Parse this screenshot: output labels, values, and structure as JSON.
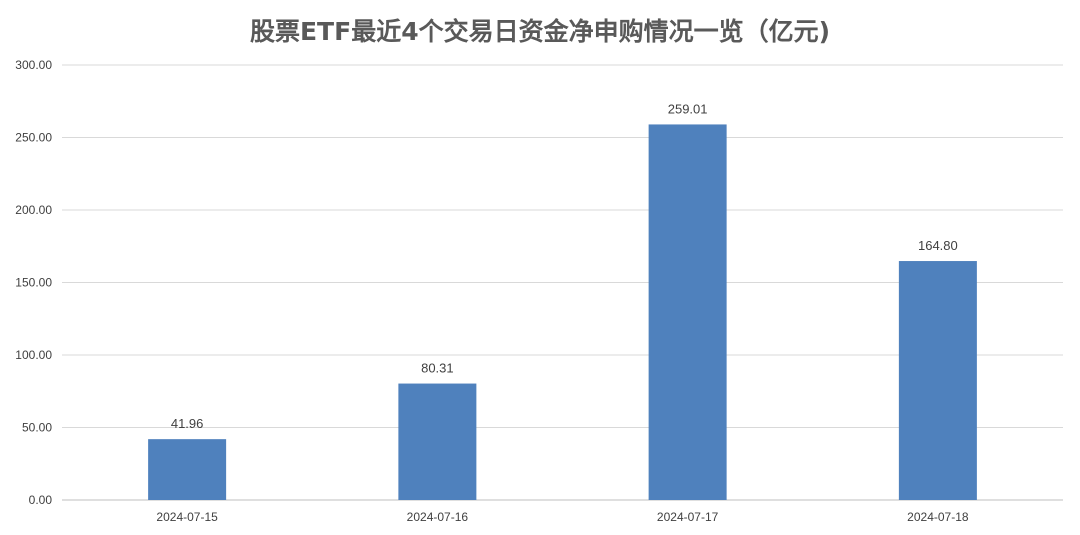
{
  "chart_data": {
    "type": "bar",
    "title": "股票ETF最近4个交易日资金净申购情况一览（亿元)",
    "xlabel": "",
    "ylabel": "",
    "categories": [
      "2024-07-15",
      "2024-07-16",
      "2024-07-17",
      "2024-07-18"
    ],
    "values": [
      41.96,
      80.31,
      259.01,
      164.8
    ],
    "value_labels": [
      "41.96",
      "80.31",
      "259.01",
      "164.80"
    ],
    "ylim": [
      0,
      300
    ],
    "yticks": [
      0,
      50,
      100,
      150,
      200,
      250,
      300
    ],
    "ytick_labels": [
      "0.00",
      "50.00",
      "100.00",
      "150.00",
      "200.00",
      "250.00",
      "300.00"
    ],
    "grid": true,
    "legend": "none",
    "colors": {
      "bar": "#4f81bd",
      "grid": "#d9d9d9",
      "text": "#404040",
      "title": "#595959"
    }
  }
}
